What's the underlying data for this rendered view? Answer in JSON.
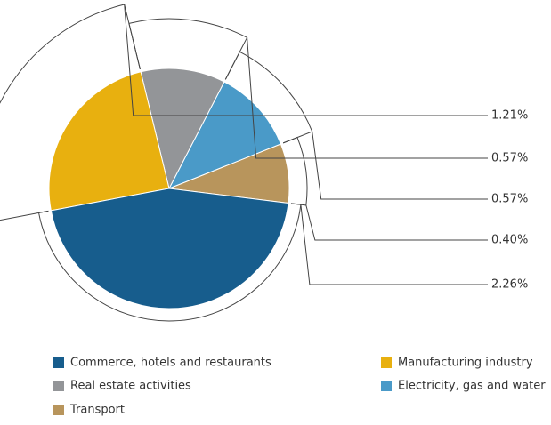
{
  "chart_data": {
    "type": "pie",
    "categories": [
      "Commerce, hotels and restaurants",
      "Manufacturing industry",
      "Real estate activities",
      "Electricity, gas and water",
      "Transport"
    ],
    "values": [
      2.26,
      1.21,
      0.57,
      0.57,
      0.4
    ],
    "value_labels": [
      "2.26%",
      "1.21%",
      "0.57%",
      "0.57%",
      "0.40%"
    ],
    "colors": [
      "#175d8d",
      "#e8b00f",
      "#939598",
      "#4a9ac8",
      "#b8955c"
    ]
  }
}
